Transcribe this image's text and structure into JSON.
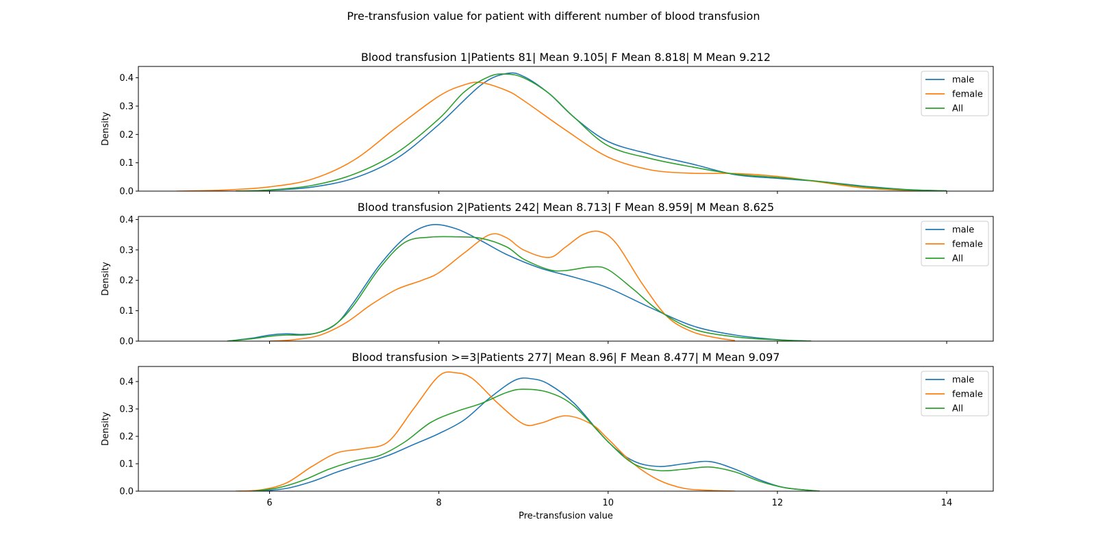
{
  "figure_title": "Pre-transfusion value for patient with different number of blood transfusion",
  "chart_data": [
    {
      "type": "line",
      "title": "Blood transfusion 1|Patients 81| Mean 9.105| F Mean 8.818| M Mean 9.212",
      "xlabel": "",
      "ylabel": "Density",
      "xlim": [
        4.45,
        14.55
      ],
      "ylim": [
        0,
        0.44
      ],
      "xticks": [
        6,
        8,
        10,
        12,
        14
      ],
      "yticks": [
        0.0,
        0.1,
        0.2,
        0.3,
        0.4
      ],
      "show_xtick_labels": false,
      "legend": {
        "position": "top-right",
        "entries": [
          "male",
          "female",
          "All"
        ]
      },
      "series": [
        {
          "name": "male",
          "color": "#1f77b4",
          "x": [
            5.6,
            6.0,
            6.5,
            7.0,
            7.5,
            8.0,
            8.5,
            8.8,
            9.0,
            9.3,
            9.6,
            10.0,
            10.5,
            11.0,
            11.5,
            12.0,
            12.5,
            13.0,
            13.5,
            14.0
          ],
          "y": [
            0.0,
            0.003,
            0.014,
            0.046,
            0.115,
            0.235,
            0.375,
            0.415,
            0.405,
            0.345,
            0.26,
            0.175,
            0.13,
            0.095,
            0.058,
            0.045,
            0.034,
            0.018,
            0.006,
            0.001
          ]
        },
        {
          "name": "female",
          "color": "#ff7f0e",
          "x": [
            4.9,
            5.5,
            6.0,
            6.5,
            7.0,
            7.5,
            8.0,
            8.3,
            8.5,
            8.8,
            9.0,
            9.5,
            10.0,
            10.5,
            11.0,
            11.5,
            12.0,
            12.5,
            13.0,
            13.5,
            14.0
          ],
          "y": [
            0.0,
            0.004,
            0.015,
            0.042,
            0.11,
            0.225,
            0.335,
            0.375,
            0.383,
            0.355,
            0.32,
            0.215,
            0.12,
            0.075,
            0.063,
            0.062,
            0.052,
            0.032,
            0.012,
            0.003,
            0.0
          ]
        },
        {
          "name": "All",
          "color": "#2ca02c",
          "x": [
            5.6,
            6.0,
            6.5,
            7.0,
            7.5,
            8.0,
            8.3,
            8.6,
            8.8,
            9.0,
            9.3,
            9.6,
            10.0,
            10.5,
            11.0,
            11.5,
            12.0,
            12.5,
            13.0,
            13.5,
            14.0
          ],
          "y": [
            0.0,
            0.004,
            0.02,
            0.06,
            0.135,
            0.255,
            0.35,
            0.405,
            0.413,
            0.4,
            0.345,
            0.26,
            0.16,
            0.115,
            0.085,
            0.06,
            0.048,
            0.034,
            0.016,
            0.005,
            0.001
          ]
        }
      ]
    },
    {
      "type": "line",
      "title": "Blood transfusion 2|Patients 242| Mean 8.713| F Mean 8.959| M Mean 8.625",
      "xlabel": "",
      "ylabel": "Density",
      "xlim": [
        4.45,
        14.55
      ],
      "ylim": [
        0,
        0.41
      ],
      "xticks": [
        6,
        8,
        10,
        12,
        14
      ],
      "yticks": [
        0.0,
        0.1,
        0.2,
        0.3,
        0.4
      ],
      "show_xtick_labels": false,
      "legend": {
        "position": "top-right",
        "entries": [
          "male",
          "female",
          "All"
        ]
      },
      "series": [
        {
          "name": "male",
          "color": "#1f77b4",
          "x": [
            5.5,
            5.8,
            6.0,
            6.2,
            6.4,
            6.6,
            6.8,
            7.0,
            7.3,
            7.6,
            7.9,
            8.2,
            8.5,
            8.8,
            9.2,
            9.6,
            10.0,
            10.5,
            11.0,
            11.5,
            12.0,
            12.4
          ],
          "y": [
            0.0,
            0.01,
            0.02,
            0.024,
            0.022,
            0.03,
            0.06,
            0.13,
            0.25,
            0.34,
            0.382,
            0.37,
            0.33,
            0.285,
            0.24,
            0.21,
            0.175,
            0.11,
            0.05,
            0.02,
            0.005,
            0.0
          ]
        },
        {
          "name": "female",
          "color": "#ff7f0e",
          "x": [
            6.0,
            6.3,
            6.6,
            6.9,
            7.2,
            7.5,
            7.8,
            8.0,
            8.3,
            8.6,
            8.8,
            9.0,
            9.3,
            9.5,
            9.7,
            9.9,
            10.1,
            10.4,
            10.7,
            11.0,
            11.3,
            11.5
          ],
          "y": [
            0.0,
            0.005,
            0.02,
            0.06,
            0.12,
            0.17,
            0.2,
            0.225,
            0.29,
            0.35,
            0.34,
            0.3,
            0.275,
            0.31,
            0.35,
            0.36,
            0.32,
            0.19,
            0.08,
            0.03,
            0.01,
            0.002
          ]
        },
        {
          "name": "All",
          "color": "#2ca02c",
          "x": [
            5.5,
            5.8,
            6.0,
            6.2,
            6.4,
            6.6,
            6.8,
            7.0,
            7.3,
            7.6,
            7.9,
            8.2,
            8.5,
            8.8,
            9.0,
            9.3,
            9.5,
            9.8,
            10.0,
            10.3,
            10.6,
            11.0,
            11.5,
            12.0,
            12.4
          ],
          "y": [
            0.0,
            0.008,
            0.016,
            0.02,
            0.02,
            0.03,
            0.06,
            0.12,
            0.24,
            0.325,
            0.342,
            0.343,
            0.338,
            0.31,
            0.27,
            0.235,
            0.232,
            0.244,
            0.235,
            0.17,
            0.1,
            0.04,
            0.014,
            0.004,
            0.0
          ]
        }
      ]
    },
    {
      "type": "line",
      "title": "Blood transfusion >=3|Patients 277| Mean 8.96| F Mean 8.477| M Mean 9.097",
      "xlabel": "Pre-transfusion value",
      "ylabel": "Density",
      "xlim": [
        4.45,
        14.55
      ],
      "ylim": [
        0,
        0.455
      ],
      "xticks": [
        6,
        8,
        10,
        12,
        14
      ],
      "yticks": [
        0.0,
        0.1,
        0.2,
        0.3,
        0.4
      ],
      "show_xtick_labels": true,
      "legend": {
        "position": "top-right",
        "entries": [
          "male",
          "female",
          "All"
        ]
      },
      "series": [
        {
          "name": "male",
          "color": "#1f77b4",
          "x": [
            5.9,
            6.2,
            6.5,
            6.8,
            7.1,
            7.4,
            7.7,
            8.0,
            8.3,
            8.6,
            8.9,
            9.1,
            9.3,
            9.6,
            10.0,
            10.3,
            10.6,
            10.9,
            11.2,
            11.5,
            11.8,
            12.1,
            12.5
          ],
          "y": [
            0.0,
            0.01,
            0.035,
            0.07,
            0.1,
            0.13,
            0.17,
            0.21,
            0.26,
            0.34,
            0.405,
            0.41,
            0.39,
            0.32,
            0.18,
            0.11,
            0.09,
            0.1,
            0.108,
            0.08,
            0.04,
            0.012,
            0.0
          ]
        },
        {
          "name": "female",
          "color": "#ff7f0e",
          "x": [
            5.6,
            5.9,
            6.2,
            6.5,
            6.8,
            7.1,
            7.4,
            7.7,
            8.0,
            8.2,
            8.4,
            8.7,
            9.0,
            9.2,
            9.5,
            9.8,
            10.0,
            10.3,
            10.6,
            10.9,
            11.2,
            11.5
          ],
          "y": [
            0.0,
            0.005,
            0.03,
            0.09,
            0.14,
            0.155,
            0.18,
            0.3,
            0.42,
            0.432,
            0.41,
            0.32,
            0.245,
            0.248,
            0.275,
            0.245,
            0.19,
            0.1,
            0.04,
            0.01,
            0.003,
            0.0
          ]
        },
        {
          "name": "All",
          "color": "#2ca02c",
          "x": [
            5.8,
            6.1,
            6.4,
            6.7,
            7.0,
            7.3,
            7.6,
            7.9,
            8.2,
            8.5,
            8.8,
            9.0,
            9.3,
            9.6,
            10.0,
            10.3,
            10.6,
            10.9,
            11.2,
            11.5,
            11.8,
            12.1,
            12.5
          ],
          "y": [
            0.0,
            0.012,
            0.04,
            0.08,
            0.11,
            0.13,
            0.18,
            0.25,
            0.29,
            0.32,
            0.36,
            0.372,
            0.36,
            0.31,
            0.18,
            0.1,
            0.075,
            0.08,
            0.088,
            0.07,
            0.035,
            0.012,
            0.0
          ]
        }
      ]
    }
  ]
}
